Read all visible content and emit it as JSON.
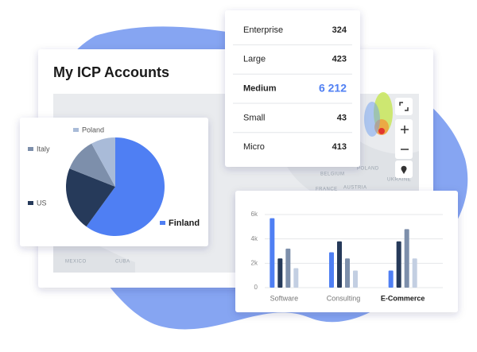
{
  "title": "My ICP Accounts",
  "table": {
    "rows": [
      [
        "Enterprise",
        "324"
      ],
      [
        "Large",
        "423"
      ],
      [
        "Medium",
        "6 212"
      ],
      [
        "Small",
        "43"
      ],
      [
        "Micro",
        "413"
      ]
    ]
  },
  "map_labels": [
    "BELGIUM",
    "POLAND",
    "FRANCE",
    "AUSTRIA",
    "UKRAINE",
    "MEXICO",
    "CUBA"
  ],
  "chart_data": [
    {
      "type": "pie",
      "labels": [
        "Finland",
        "US",
        "Italy",
        "Poland"
      ],
      "values": [
        60,
        21,
        11,
        8
      ],
      "colors": [
        "#4f7ff3",
        "#263a5a",
        "#7d8fab",
        "#a9bbd8"
      ]
    },
    {
      "type": "bar",
      "categories": [
        "Software",
        "Consulting",
        "E-Commerce"
      ],
      "series": [
        {
          "color": "#4f7ff3",
          "values": [
            5700,
            2900,
            1400
          ]
        },
        {
          "color": "#263a5a",
          "values": [
            2400,
            3800,
            3800
          ]
        },
        {
          "color": "#7d8fab",
          "values": [
            3200,
            2400,
            4800
          ]
        },
        {
          "color": "#c3cfe2",
          "values": [
            1600,
            1400,
            2400
          ]
        }
      ],
      "ylim": [
        0,
        6000
      ],
      "yticks": [
        0,
        {
          "value": 2000,
          "label": "2k"
        },
        {
          "value": 4000,
          "label": "4k"
        },
        {
          "value": 6000,
          "label": "6k"
        }
      ],
      "grid": true
    }
  ]
}
